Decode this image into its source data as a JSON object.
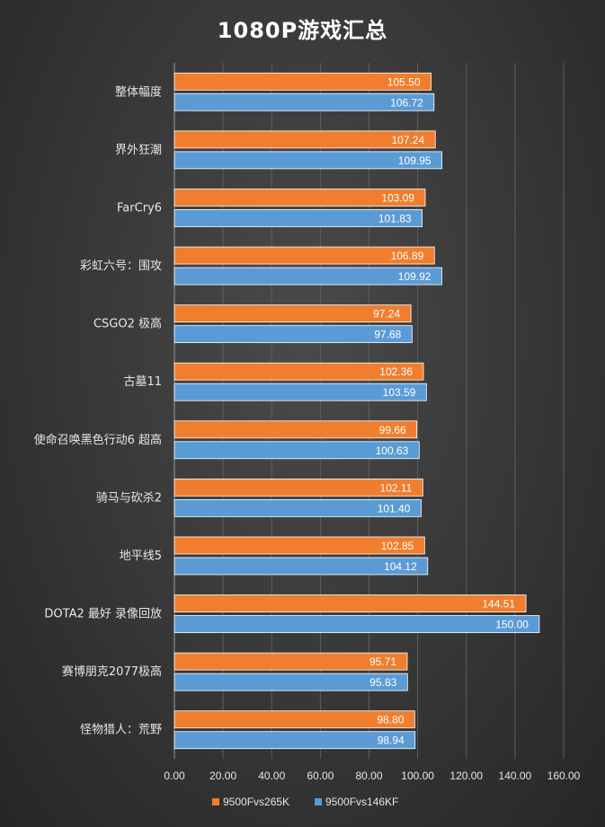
{
  "chart_data": {
    "type": "bar",
    "orientation": "horizontal",
    "title": "1080P游戏汇总",
    "categories": [
      "整体幅度",
      "界外狂潮",
      "FarCry6",
      "彩虹六号：围攻",
      "CSGO2 极高",
      "古墓11",
      "使命召唤黑色行动6 超高",
      "骑马与砍杀2",
      "地平线5",
      "DOTA2 最好 录像回放",
      "赛博朋克2077极高",
      "怪物猎人：荒野"
    ],
    "series": [
      {
        "name": "9500Fvs265K",
        "color": "#f07e2e",
        "values": [
          105.5,
          107.24,
          103.09,
          106.89,
          97.24,
          102.36,
          99.66,
          102.11,
          102.85,
          144.51,
          95.71,
          98.8
        ],
        "labels": [
          "105.50",
          "107.24",
          "103.09",
          "106.89",
          "97.24",
          "102.36",
          "99.66",
          "102.11",
          "102.85",
          "144.51",
          "95.71",
          "98.80"
        ]
      },
      {
        "name": "9500Fvs146KF",
        "color": "#5b9bd5",
        "values": [
          106.72,
          109.95,
          101.83,
          109.92,
          97.68,
          103.59,
          100.63,
          101.4,
          104.12,
          150.0,
          95.83,
          98.94
        ],
        "labels": [
          "106.72",
          "109.95",
          "101.83",
          "109.92",
          "97.68",
          "103.59",
          "100.63",
          "101.40",
          "104.12",
          "150.00",
          "95.83",
          "98.94"
        ]
      }
    ],
    "xlim": [
      0,
      160
    ],
    "xticks": [
      "0.00",
      "20.00",
      "40.00",
      "60.00",
      "80.00",
      "100.00",
      "120.00",
      "140.00",
      "160.00"
    ],
    "xlabel": "",
    "ylabel": "",
    "grid": true,
    "legend_position": "bottom"
  }
}
